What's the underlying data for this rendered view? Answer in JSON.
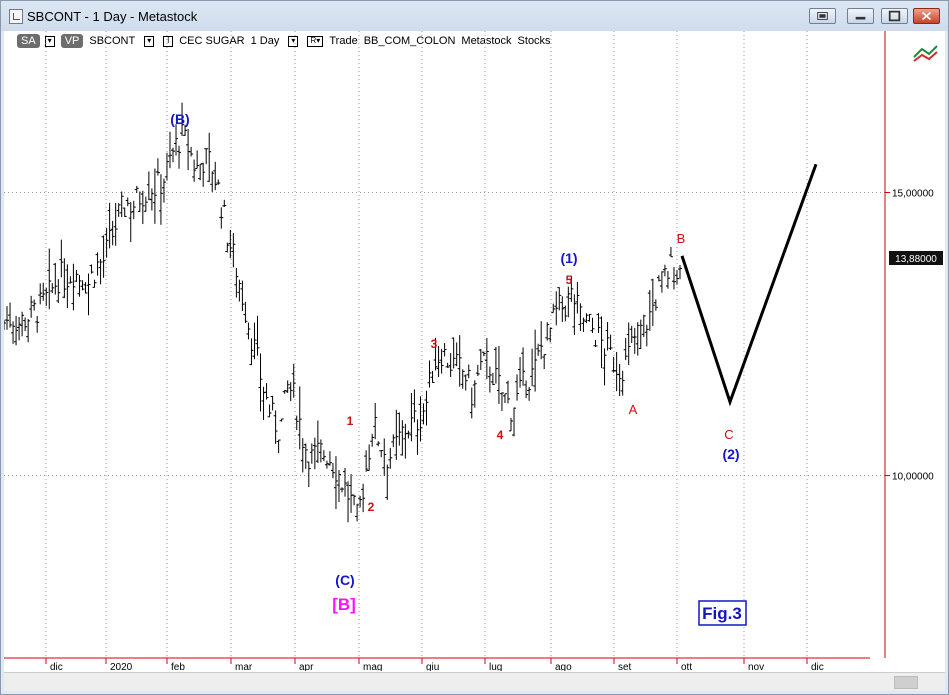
{
  "window": {
    "title": "SBCONT - 1 Day - Metastock"
  },
  "toolbar": {
    "sa_label": "SA",
    "vp_label": "VP",
    "symbol": "SBCONT",
    "indicator_toggle": "I",
    "security_name": "CEC SUGAR",
    "period": "1 Day",
    "rt_label": "R",
    "mode": "Trade",
    "source": "BB_COM_COLON",
    "asset_class": "Metastock",
    "asset_type": "Stocks"
  },
  "chart_data": {
    "type": "ohlc",
    "x_ticks": [
      "dic",
      "2020",
      "feb",
      "mar",
      "apr",
      "mag",
      "giu",
      "lug",
      "ago",
      "set",
      "ott",
      "nov",
      "dic"
    ],
    "y_ticks": [
      "15,00000",
      "10,00000"
    ],
    "y_range": [
      6.9,
      17.5
    ],
    "last_price": "13,88000",
    "closes": [
      12.7,
      12.8,
      12.7,
      12.8,
      12.9,
      13.0,
      13.2,
      13.5,
      13.5,
      13.6,
      13.5,
      13.4,
      13.7,
      13.8,
      14.2,
      14.6,
      14.8,
      14.8,
      15.0,
      15.1,
      15.1,
      15.3,
      15.7,
      16.0,
      15.8,
      15.4,
      15.6,
      15.5,
      15.0,
      14.3,
      13.8,
      13.2,
      12.6,
      12.0,
      11.4,
      11.0,
      10.8,
      11.6,
      11.3,
      10.6,
      10.3,
      10.4,
      10.4,
      10.2,
      9.9,
      9.6,
      9.2,
      10.0,
      10.9,
      10.6,
      10.3,
      10.5,
      10.8,
      10.9,
      11.0,
      11.3,
      12.0,
      12.2,
      12.0,
      11.9,
      11.8,
      11.4,
      11.9,
      12.0,
      11.7,
      11.4,
      11.2,
      11.4,
      11.7,
      11.8,
      12.3,
      12.5,
      12.9,
      13.0,
      13.2,
      12.8,
      12.7,
      12.5,
      12.3,
      12.1,
      11.9,
      12.0,
      12.4,
      12.6,
      12.8,
      13.2,
      13.5,
      13.7,
      13.6
    ],
    "projection": [
      13.88,
      11.3,
      15.5
    ],
    "wave_labels": {
      "b_paren": "(B)",
      "c_paren": "(C)",
      "b_bracket": "[B]",
      "w1": "1",
      "w2": "2",
      "w3": "3",
      "w4": "4",
      "w5": "5",
      "one_paren": "(1)",
      "a": "A",
      "b": "B",
      "c": "C",
      "two_paren": "(2)"
    },
    "figure_label": "Fig.3"
  },
  "colors": {
    "wave_blue": "#1515c8",
    "wave_red": "#d01010",
    "bracket_magenta": "#ff10ff",
    "axis_red": "#d40000",
    "grid": "#9a9a9a"
  }
}
